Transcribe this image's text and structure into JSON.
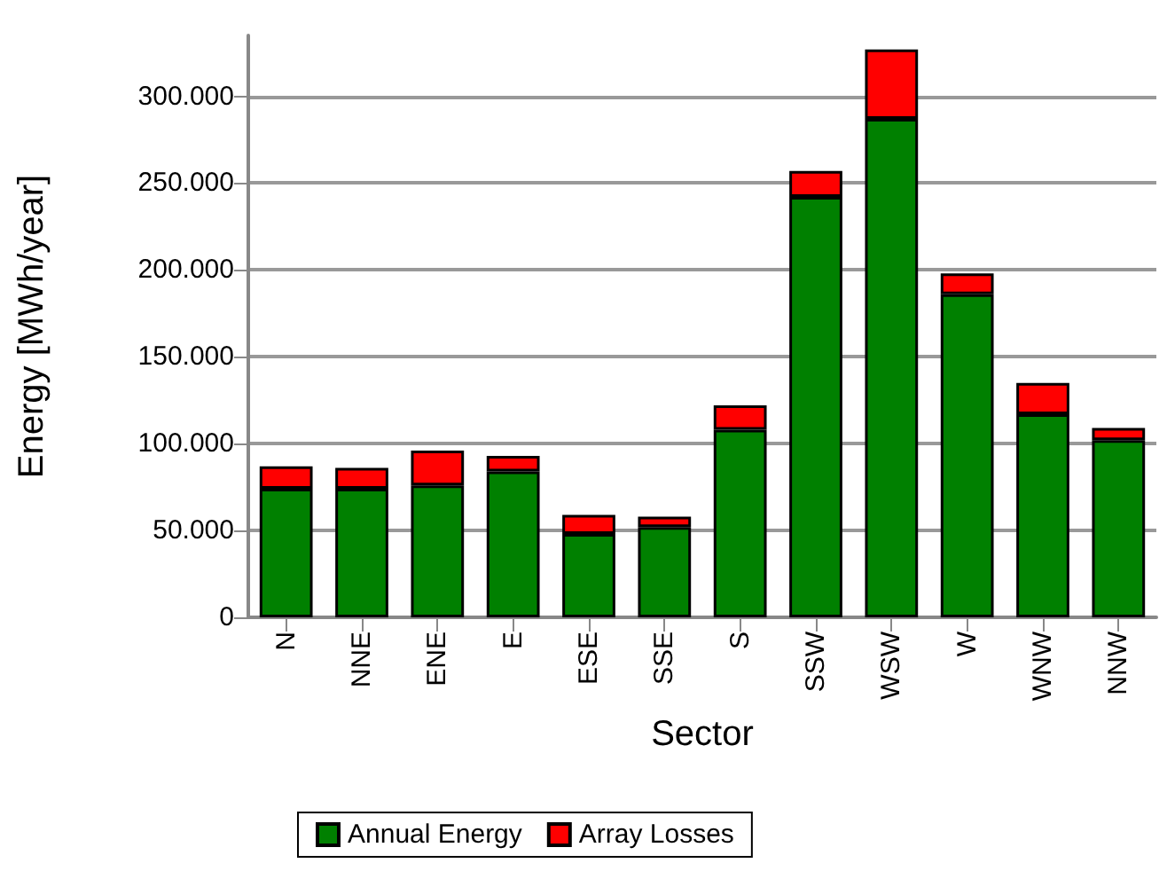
{
  "chart_data": {
    "type": "bar",
    "stacked": true,
    "xlabel": "Sector",
    "ylabel": "Energy [MWh/year]",
    "categories": [
      "N",
      "NNE",
      "ENE",
      "E",
      "ESE",
      "SSE",
      "S",
      "SSW",
      "WSW",
      "W",
      "WNW",
      "NNW"
    ],
    "series": [
      {
        "name": "Annual Energy",
        "color": "#008000",
        "values": [
          74000,
          74000,
          76000,
          84000,
          48000,
          52000,
          108000,
          242000,
          287000,
          186000,
          117000,
          102000
        ]
      },
      {
        "name": "Array Losses",
        "color": "#ff0000",
        "values": [
          13000,
          12000,
          20000,
          9000,
          11000,
          6000,
          14000,
          15000,
          40000,
          12000,
          18000,
          7000
        ]
      }
    ],
    "ylim": [
      0,
      335000
    ],
    "yticks": [
      {
        "value": 0,
        "label": "0"
      },
      {
        "value": 50000,
        "label": "50.000"
      },
      {
        "value": 100000,
        "label": "100.000"
      },
      {
        "value": 150000,
        "label": "150.000"
      },
      {
        "value": 200000,
        "label": "200.000"
      },
      {
        "value": 250000,
        "label": "250.000"
      },
      {
        "value": 300000,
        "label": "300.000"
      }
    ],
    "grid": "y",
    "legend": "bottom"
  }
}
